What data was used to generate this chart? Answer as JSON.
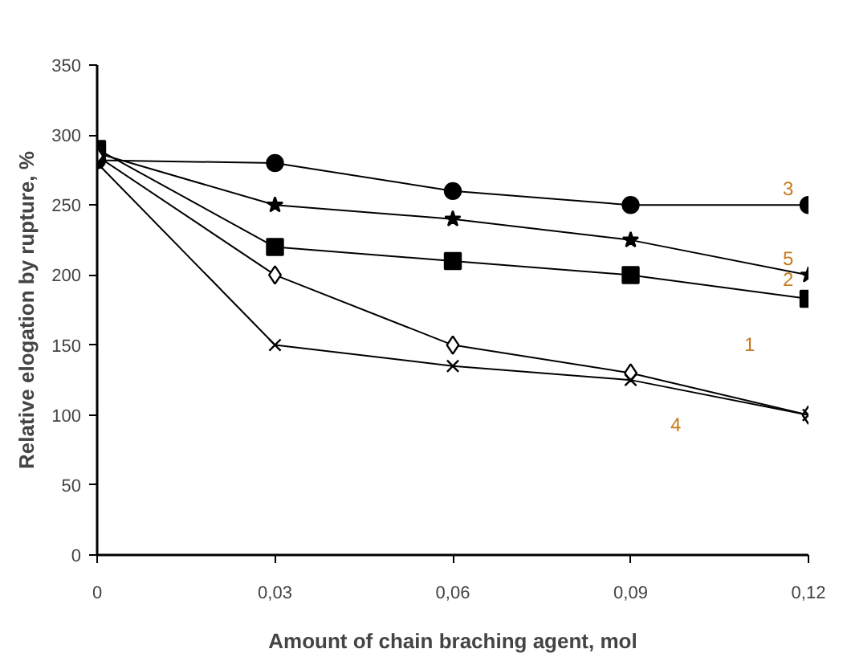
{
  "chart_data": {
    "type": "line",
    "xlabel": "Amount of chain braching agent, mol",
    "ylabel": "Relative elogation by rupture, %",
    "x": [
      0,
      0.03,
      0.06,
      0.09,
      0.12
    ],
    "series": [
      {
        "name": "3",
        "color": "#000000",
        "marker": "circle",
        "values": [
          282,
          280,
          260,
          250,
          250
        ]
      },
      {
        "name": "5",
        "color": "#000000",
        "marker": "star",
        "values": [
          287,
          250,
          240,
          225,
          200
        ]
      },
      {
        "name": "2",
        "color": "#000000",
        "marker": "square",
        "values": [
          290,
          220,
          210,
          200,
          183
        ]
      },
      {
        "name": "1",
        "color": "#000000",
        "marker": "diamond",
        "values": [
          285,
          200,
          150,
          130,
          100
        ]
      },
      {
        "name": "4",
        "color": "#000000",
        "marker": "cross",
        "values": [
          280,
          150,
          135,
          125,
          100
        ]
      }
    ],
    "xlim": [
      0,
      0.12
    ],
    "ylim": [
      0,
      350
    ],
    "xticks": [
      0,
      {
        "value": 0.03,
        "label": "0,03"
      },
      {
        "value": 0.06,
        "label": "0,06"
      },
      {
        "value": 0.09,
        "label": "0,09"
      },
      {
        "value": 0.12,
        "label": "0,12"
      }
    ],
    "yticks": [
      0,
      50,
      100,
      150,
      200,
      250,
      300,
      350
    ],
    "grid": false
  }
}
